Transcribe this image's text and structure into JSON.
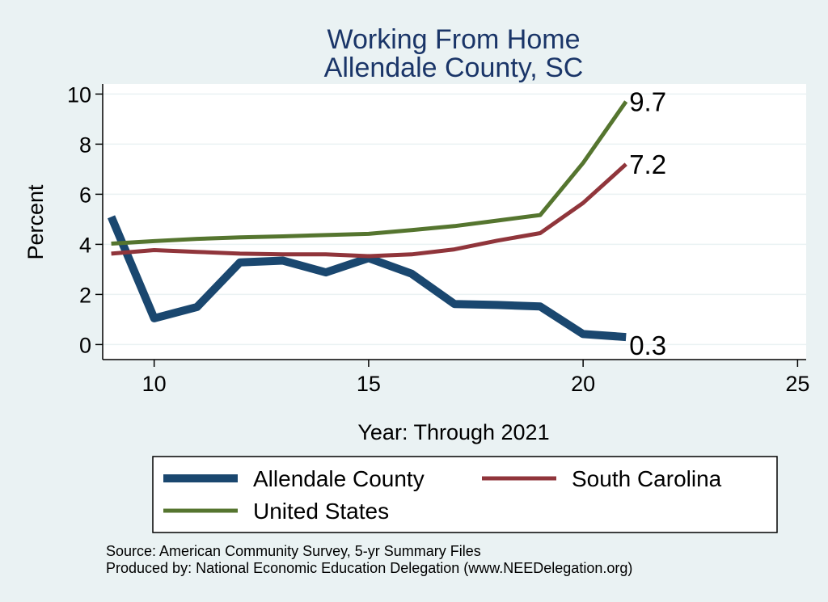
{
  "chart_data": {
    "type": "line",
    "title": [
      "Working From Home",
      "Allendale County, SC"
    ],
    "xlabel": "Year: Through 2021",
    "ylabel": "Percent",
    "xlim": [
      8.8,
      25.2
    ],
    "ylim": [
      -0.6,
      10.4
    ],
    "xticks": [
      10,
      15,
      20,
      25
    ],
    "yticks": [
      0,
      2,
      4,
      6,
      8,
      10
    ],
    "grid": true,
    "legend_position": "bottom",
    "series": [
      {
        "name": "Allendale County",
        "color": "#1a476f",
        "x": [
          9,
          10,
          11,
          12,
          13,
          14,
          15,
          16,
          17,
          18,
          19,
          20,
          21
        ],
        "values": [
          5.1,
          1.05,
          1.5,
          3.28,
          3.35,
          2.88,
          3.45,
          2.83,
          1.62,
          1.58,
          1.52,
          0.42,
          0.3
        ],
        "end_label": "0.3"
      },
      {
        "name": "South Carolina",
        "color": "#90353b",
        "x": [
          9,
          10,
          11,
          12,
          13,
          14,
          15,
          16,
          17,
          18,
          19,
          20,
          21
        ],
        "values": [
          3.63,
          3.77,
          3.7,
          3.63,
          3.6,
          3.6,
          3.53,
          3.6,
          3.8,
          4.15,
          4.45,
          5.65,
          7.2
        ],
        "end_label": "7.2"
      },
      {
        "name": "United States",
        "color": "#55752f",
        "x": [
          9,
          10,
          11,
          12,
          13,
          14,
          15,
          16,
          17,
          18,
          19,
          20,
          21
        ],
        "values": [
          4.03,
          4.13,
          4.22,
          4.28,
          4.32,
          4.37,
          4.42,
          4.57,
          4.73,
          4.95,
          5.17,
          7.25,
          9.7
        ],
        "end_label": "9.7"
      }
    ]
  },
  "footer": {
    "source": "Source: American Community Survey, 5-yr Summary Files",
    "produced_by": "Produced by: National Economic Education Delegation (www.NEEDelegation.org)"
  }
}
